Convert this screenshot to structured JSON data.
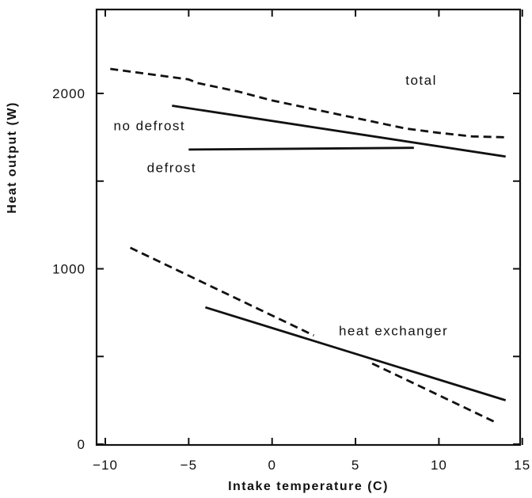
{
  "chart_data": {
    "type": "line",
    "xlabel": "Intake temperature (C)",
    "ylabel": "Heat output (W)",
    "xlim": [
      -10,
      15
    ],
    "ylim": [
      0,
      2500
    ],
    "x_ticks": [
      -10,
      -5,
      0,
      5,
      10,
      15
    ],
    "x_tick_labels": [
      "−10",
      "−5",
      "0",
      "5",
      "10",
      "15"
    ],
    "y_ticks": [
      0,
      500,
      1000,
      1500,
      2000
    ],
    "y_tick_labels": [
      "0",
      "",
      "1000",
      "",
      "2000"
    ],
    "grid": false,
    "series": [
      {
        "style": "dashed",
        "x": [
          -9.7,
          -5,
          -4.5,
          -2,
          0,
          2,
          4,
          6,
          8,
          10,
          12,
          14
        ],
        "y": [
          2140,
          2080,
          2060,
          2010,
          1960,
          1920,
          1880,
          1840,
          1800,
          1775,
          1755,
          1750
        ]
      },
      {
        "style": "solid",
        "x": [
          -6,
          14
        ],
        "y": [
          1930,
          1640
        ]
      },
      {
        "style": "solid",
        "x": [
          -5,
          8.5
        ],
        "y": [
          1680,
          1690
        ]
      },
      {
        "style": "dashed",
        "x": [
          -8.5,
          2.5
        ],
        "y": [
          1120,
          620
        ]
      },
      {
        "style": "solid",
        "x": [
          -4,
          14
        ],
        "y": [
          780,
          250
        ]
      },
      {
        "style": "dashed",
        "x": [
          6,
          13.5
        ],
        "y": [
          460,
          120
        ]
      }
    ],
    "annotations": [
      {
        "text": "total",
        "x": 8,
        "y": 2050
      },
      {
        "text": "no defrost",
        "x": -9.5,
        "y": 1790
      },
      {
        "text": "defrost",
        "x": -7.5,
        "y": 1550
      },
      {
        "text": "heat exchanger",
        "x": 4,
        "y": 620
      }
    ]
  }
}
